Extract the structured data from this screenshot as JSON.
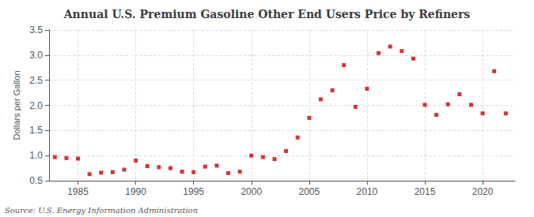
{
  "chart_data": {
    "type": "scatter",
    "title": "Annual U.S. Premium Gasoline Other End Users Price by Refiners",
    "ylabel": "Dollars per Gallon",
    "annotations": [
      "Source: U.S. Energy Information Administration"
    ],
    "x": [
      1983,
      1984,
      1985,
      1986,
      1987,
      1988,
      1989,
      1990,
      1991,
      1992,
      1993,
      1994,
      1995,
      1996,
      1997,
      1998,
      1999,
      2000,
      2001,
      2002,
      2003,
      2004,
      2005,
      2006,
      2007,
      2008,
      2009,
      2010,
      2011,
      2012,
      2013,
      2014,
      2015,
      2016,
      2017,
      2018,
      2019,
      2020,
      2021,
      2022
    ],
    "values": [
      0.97,
      0.95,
      0.94,
      0.63,
      0.66,
      0.67,
      0.72,
      0.9,
      0.79,
      0.77,
      0.75,
      0.68,
      0.67,
      0.78,
      0.8,
      0.65,
      0.68,
      1.0,
      0.97,
      0.93,
      1.09,
      1.36,
      1.75,
      2.12,
      2.3,
      2.8,
      1.97,
      2.33,
      3.04,
      3.17,
      3.08,
      2.93,
      2.01,
      1.81,
      2.02,
      2.22,
      2.01,
      1.84,
      2.68,
      1.84
    ],
    "color": "#cc0000",
    "marker": "square",
    "xlim": [
      1982.5,
      2022.8
    ],
    "xticks": [
      1985,
      1990,
      1995,
      2000,
      2005,
      2010,
      2015,
      2020
    ],
    "ylim": [
      0.5,
      3.5
    ],
    "yticks": [
      0.5,
      {
        "value": 1.0,
        "label": "1.0"
      },
      1.5,
      {
        "value": 2.0,
        "label": "2.0"
      },
      2.5,
      {
        "value": 3.0,
        "label": "3.0"
      },
      3.5
    ],
    "grid": true
  }
}
